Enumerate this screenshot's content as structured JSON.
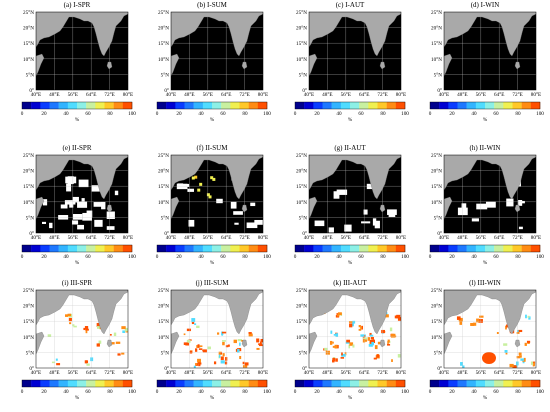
{
  "figure": {
    "panels": [
      {
        "title": "(a) I-SPR",
        "scheme": "I",
        "variant": "spr"
      },
      {
        "title": "(b) I-SUM",
        "scheme": "I",
        "variant": "sum"
      },
      {
        "title": "(c) I-AUT",
        "scheme": "I",
        "variant": "aut"
      },
      {
        "title": "(d) I-WIN",
        "scheme": "I",
        "variant": "win"
      },
      {
        "title": "(e) II-SPR",
        "scheme": "II",
        "variant": "spr"
      },
      {
        "title": "(f) II-SUM",
        "scheme": "II",
        "variant": "sum"
      },
      {
        "title": "(g) II-AUT",
        "scheme": "II",
        "variant": "aut"
      },
      {
        "title": "(h) II-WIN",
        "scheme": "II",
        "variant": "win"
      },
      {
        "title": "(i) III-SPR",
        "scheme": "III",
        "variant": "spr"
      },
      {
        "title": "(j) III-SUM",
        "scheme": "III",
        "variant": "sum"
      },
      {
        "title": "(k) III-AUT",
        "scheme": "III",
        "variant": "aut"
      },
      {
        "title": "(l) III-WIN",
        "scheme": "III",
        "variant": "win"
      }
    ],
    "lat_labels": [
      "25°N",
      "20°N",
      "15°N",
      "10°N",
      "5°N",
      "0°"
    ],
    "lon_labels": [
      "40°E",
      "48°E",
      "56°E",
      "64°E",
      "72°E",
      "80°E"
    ],
    "colorbar": {
      "tick_labels": [
        "0",
        "20",
        "40",
        "60",
        "80",
        "100"
      ],
      "unit": "%",
      "colors": [
        "#00008c",
        "#0000d2",
        "#0a3cff",
        "#1e78ff",
        "#32b4ff",
        "#50dcff",
        "#8cf0e6",
        "#c8f0a0",
        "#f0f050",
        "#ffc828",
        "#ff8c14",
        "#ff5000"
      ]
    },
    "land_color": "#a9a9a9",
    "nodata_color": "#ffffff"
  }
}
